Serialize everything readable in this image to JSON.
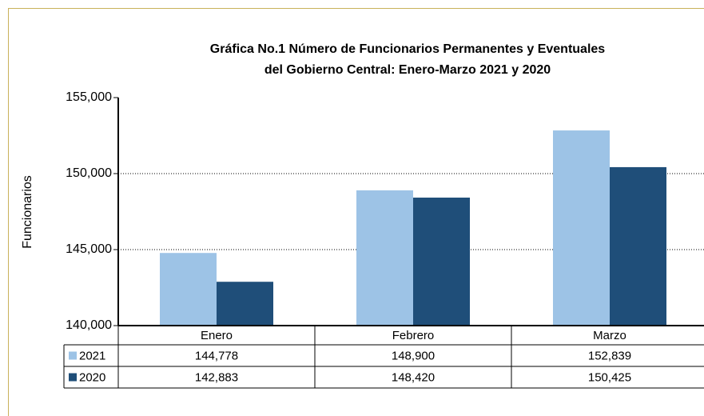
{
  "chart_data": {
    "type": "bar",
    "title": "Gráfica No.1 Número de Funcionarios  Permanentes y Eventuales",
    "subtitle": "del Gobierno Central: Enero-Marzo 2021 y 2020",
    "y_label": "Funcionarios",
    "categories": [
      "Enero",
      "Febrero",
      "Marzo"
    ],
    "series": [
      {
        "name": "2021",
        "color": "#9dc3e6",
        "values": [
          144778,
          148900,
          152839
        ],
        "value_labels": [
          "144,778",
          "148,900",
          "152,839"
        ]
      },
      {
        "name": "2020",
        "color": "#1f4e79",
        "values": [
          142883,
          148420,
          150425
        ],
        "value_labels": [
          "142,883",
          "148,420",
          "150,425"
        ]
      }
    ],
    "ylim": [
      140000,
      155000
    ],
    "yticks": [
      {
        "value": 140000,
        "label": "140,000"
      },
      {
        "value": 145000,
        "label": "145,000"
      },
      {
        "value": 150000,
        "label": "150,000"
      },
      {
        "value": 155000,
        "label": "155,000"
      }
    ],
    "grid": true
  }
}
